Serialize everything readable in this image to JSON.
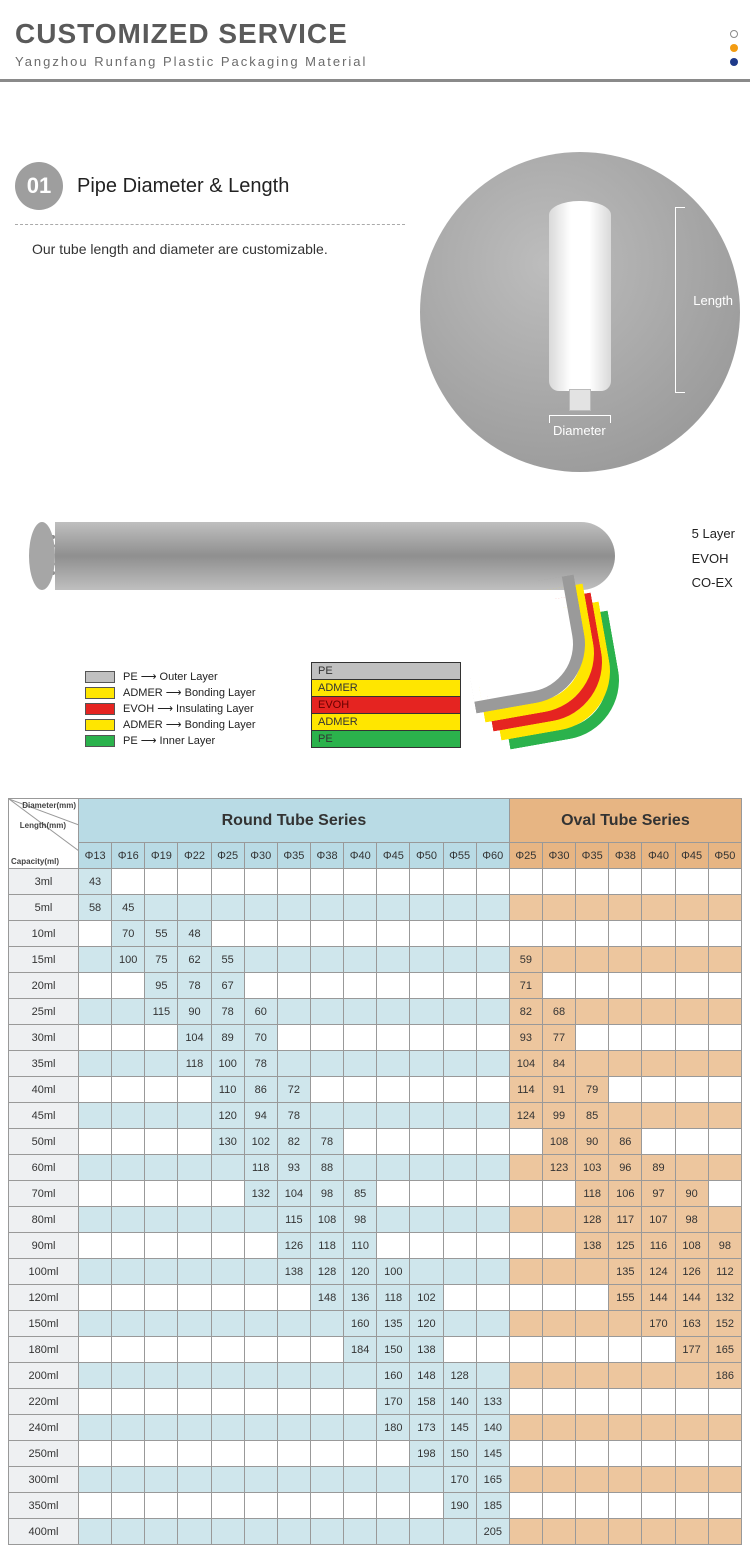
{
  "header": {
    "title": "CUSTOMIZED SERVICE",
    "subtitle": "Yangzhou Runfang Plastic Packaging Material",
    "dot_colors": [
      "#ffffff",
      "#f39c12",
      "#1e3a8a"
    ]
  },
  "section01": {
    "badge": "01",
    "title": "Pipe Diameter & Length",
    "desc": "Our tube length and diameter are customizable.",
    "dim_length": "Length",
    "dim_diameter": "Diameter"
  },
  "layers_panel": {
    "side_labels": [
      "5 Layer",
      "EVOH",
      "CO-EX"
    ],
    "legend": [
      {
        "name": "PE",
        "role": "Outer Layer",
        "color": "#c0c0c0"
      },
      {
        "name": "ADMER",
        "role": "Bonding Layer",
        "color": "#ffe600"
      },
      {
        "name": "EVOH",
        "role": "Insulating Layer",
        "color": "#e52421"
      },
      {
        "name": "ADMER",
        "role": "Bonding Layer",
        "color": "#ffe600"
      },
      {
        "name": "PE",
        "role": "Inner Layer",
        "color": "#2bb24c"
      }
    ],
    "stack_labels": [
      "PE",
      "ADMER",
      "EVOH",
      "ADMER",
      "PE"
    ],
    "stack_colors": [
      "#c0c0c0",
      "#ffe600",
      "#e52421",
      "#ffe600",
      "#2bb24c"
    ]
  },
  "table": {
    "corner": {
      "diameter": "Diameter(mm)",
      "length": "Length(mm)",
      "capacity": "Capacity(ml)"
    },
    "series": {
      "round": "Round Tube Series",
      "oval": "Oval Tube Series"
    },
    "round_cols": [
      "Φ13",
      "Φ16",
      "Φ19",
      "Φ22",
      "Φ25",
      "Φ30",
      "Φ35",
      "Φ38",
      "Φ40",
      "Φ45",
      "Φ50",
      "Φ55",
      "Φ60"
    ],
    "oval_cols": [
      "Φ25",
      "Φ30",
      "Φ35",
      "Φ38",
      "Φ40",
      "Φ45",
      "Φ50"
    ],
    "capacities": [
      "3ml",
      "5ml",
      "10ml",
      "15ml",
      "20ml",
      "25ml",
      "30ml",
      "35ml",
      "40ml",
      "45ml",
      "50ml",
      "60ml",
      "70ml",
      "80ml",
      "90ml",
      "100ml",
      "120ml",
      "150ml",
      "180ml",
      "200ml",
      "220ml",
      "240ml",
      "250ml",
      "300ml",
      "350ml",
      "400ml"
    ],
    "round": [
      [
        43,
        "",
        "",
        "",
        "",
        "",
        "",
        "",
        "",
        "",
        "",
        "",
        ""
      ],
      [
        58,
        45,
        "",
        "",
        "",
        "",
        "",
        "",
        "",
        "",
        "",
        "",
        ""
      ],
      [
        "",
        70,
        55,
        48,
        "",
        "",
        "",
        "",
        "",
        "",
        "",
        "",
        ""
      ],
      [
        "",
        100,
        75,
        62,
        55,
        "",
        "",
        "",
        "",
        "",
        "",
        "",
        ""
      ],
      [
        "",
        "",
        95,
        78,
        67,
        "",
        "",
        "",
        "",
        "",
        "",
        "",
        ""
      ],
      [
        "",
        "",
        115,
        90,
        78,
        60,
        "",
        "",
        "",
        "",
        "",
        "",
        ""
      ],
      [
        "",
        "",
        "",
        104,
        89,
        70,
        "",
        "",
        "",
        "",
        "",
        "",
        ""
      ],
      [
        "",
        "",
        "",
        118,
        100,
        78,
        "",
        "",
        "",
        "",
        "",
        "",
        ""
      ],
      [
        "",
        "",
        "",
        "",
        110,
        86,
        72,
        "",
        "",
        "",
        "",
        "",
        ""
      ],
      [
        "",
        "",
        "",
        "",
        120,
        94,
        78,
        "",
        "",
        "",
        "",
        "",
        ""
      ],
      [
        "",
        "",
        "",
        "",
        130,
        102,
        82,
        78,
        "",
        "",
        "",
        "",
        ""
      ],
      [
        "",
        "",
        "",
        "",
        "",
        118,
        93,
        88,
        "",
        "",
        "",
        "",
        ""
      ],
      [
        "",
        "",
        "",
        "",
        "",
        132,
        104,
        98,
        85,
        "",
        "",
        "",
        ""
      ],
      [
        "",
        "",
        "",
        "",
        "",
        "",
        115,
        108,
        98,
        "",
        "",
        "",
        ""
      ],
      [
        "",
        "",
        "",
        "",
        "",
        "",
        126,
        118,
        110,
        "",
        "",
        "",
        ""
      ],
      [
        "",
        "",
        "",
        "",
        "",
        "",
        138,
        128,
        120,
        100,
        "",
        "",
        ""
      ],
      [
        "",
        "",
        "",
        "",
        "",
        "",
        "",
        148,
        136,
        118,
        102,
        "",
        ""
      ],
      [
        "",
        "",
        "",
        "",
        "",
        "",
        "",
        "",
        160,
        135,
        120,
        "",
        ""
      ],
      [
        "",
        "",
        "",
        "",
        "",
        "",
        "",
        "",
        184,
        150,
        138,
        "",
        ""
      ],
      [
        "",
        "",
        "",
        "",
        "",
        "",
        "",
        "",
        "",
        160,
        148,
        128,
        ""
      ],
      [
        "",
        "",
        "",
        "",
        "",
        "",
        "",
        "",
        "",
        170,
        158,
        140,
        133
      ],
      [
        "",
        "",
        "",
        "",
        "",
        "",
        "",
        "",
        "",
        180,
        173,
        145,
        140
      ],
      [
        "",
        "",
        "",
        "",
        "",
        "",
        "",
        "",
        "",
        "",
        198,
        150,
        145
      ],
      [
        "",
        "",
        "",
        "",
        "",
        "",
        "",
        "",
        "",
        "",
        "",
        170,
        165
      ],
      [
        "",
        "",
        "",
        "",
        "",
        "",
        "",
        "",
        "",
        "",
        "",
        190,
        185
      ],
      [
        "",
        "",
        "",
        "",
        "",
        "",
        "",
        "",
        "",
        "",
        "",
        "",
        205
      ]
    ],
    "oval": [
      [
        "",
        "",
        "",
        "",
        "",
        "",
        ""
      ],
      [
        "",
        "",
        "",
        "",
        "",
        "",
        ""
      ],
      [
        "",
        "",
        "",
        "",
        "",
        "",
        ""
      ],
      [
        59,
        "",
        "",
        "",
        "",
        "",
        ""
      ],
      [
        71,
        "",
        "",
        "",
        "",
        "",
        ""
      ],
      [
        82,
        68,
        "",
        "",
        "",
        "",
        ""
      ],
      [
        93,
        77,
        "",
        "",
        "",
        "",
        ""
      ],
      [
        104,
        84,
        "",
        "",
        "",
        "",
        ""
      ],
      [
        114,
        91,
        79,
        "",
        "",
        "",
        ""
      ],
      [
        124,
        99,
        85,
        "",
        "",
        "",
        ""
      ],
      [
        "",
        108,
        90,
        86,
        "",
        "",
        ""
      ],
      [
        "",
        123,
        103,
        96,
        89,
        "",
        ""
      ],
      [
        "",
        "",
        118,
        106,
        97,
        90,
        ""
      ],
      [
        "",
        "",
        128,
        117,
        107,
        98,
        ""
      ],
      [
        "",
        "",
        138,
        125,
        116,
        108,
        98
      ],
      [
        "",
        "",
        "",
        135,
        124,
        126,
        112
      ],
      [
        "",
        "",
        "",
        155,
        144,
        144,
        132
      ],
      [
        "",
        "",
        "",
        "",
        170,
        163,
        152
      ],
      [
        "",
        "",
        "",
        "",
        "",
        177,
        165
      ],
      [
        "",
        "",
        "",
        "",
        "",
        "",
        186
      ],
      [
        "",
        "",
        "",
        "",
        "",
        "",
        ""
      ],
      [
        "",
        "",
        "",
        "",
        "",
        "",
        ""
      ],
      [
        "",
        "",
        "",
        "",
        "",
        "",
        ""
      ],
      [
        "",
        "",
        "",
        "",
        "",
        "",
        ""
      ],
      [
        "",
        "",
        "",
        "",
        "",
        "",
        ""
      ],
      [
        "",
        "",
        "",
        "",
        "",
        "",
        ""
      ]
    ],
    "colors": {
      "round_header_bg": "#b9dbe5",
      "oval_header_bg": "#e7b583",
      "round_row_shade": "#cfe6ec",
      "oval_row_shade": "#edc69e",
      "border": "#999999",
      "cap_bg": "#eef0f2"
    }
  }
}
